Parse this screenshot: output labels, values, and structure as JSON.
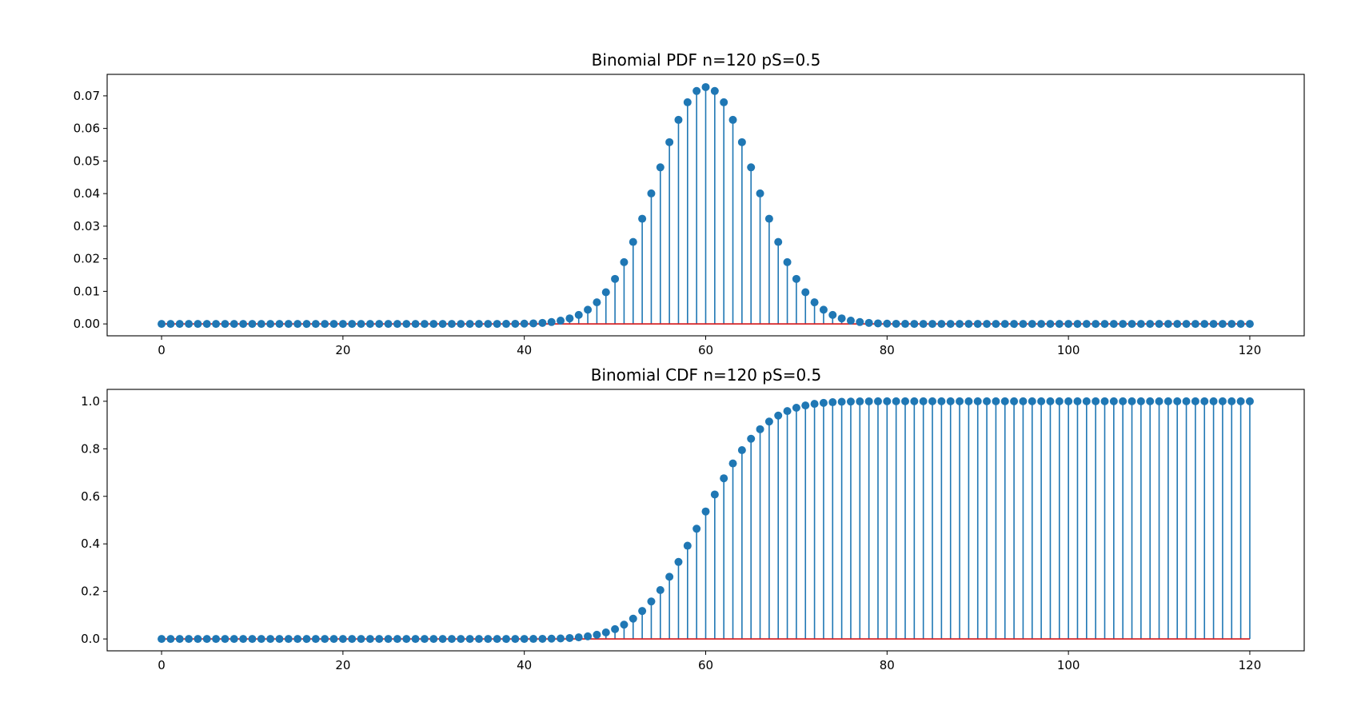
{
  "chart_data": [
    {
      "type": "stem",
      "title": "Binomial PDF n=120 pS=0.5",
      "n": 120,
      "pS": 0.5,
      "distribution": "pdf",
      "xlim": [
        -6,
        126
      ],
      "ylim": [
        -0.00365,
        0.0766
      ],
      "x_ticks": [
        0,
        20,
        40,
        60,
        80,
        100,
        120
      ],
      "x_tick_labels": [
        "0",
        "20",
        "40",
        "60",
        "80",
        "100",
        "120"
      ],
      "y_ticks": [
        0.0,
        0.01,
        0.02,
        0.03,
        0.04,
        0.05,
        0.06,
        0.07
      ],
      "y_tick_labels": [
        "0.00",
        "0.01",
        "0.02",
        "0.03",
        "0.04",
        "0.05",
        "0.06",
        "0.07"
      ],
      "x": [],
      "values": []
    },
    {
      "type": "stem",
      "title": "Binomial CDF n=120 pS=0.5",
      "n": 120,
      "pS": 0.5,
      "distribution": "cdf",
      "xlim": [
        -6,
        126
      ],
      "ylim": [
        -0.05,
        1.05
      ],
      "x_ticks": [
        0,
        20,
        40,
        60,
        80,
        100,
        120
      ],
      "x_tick_labels": [
        "0",
        "20",
        "40",
        "60",
        "80",
        "100",
        "120"
      ],
      "y_ticks": [
        0.0,
        0.2,
        0.4,
        0.6,
        0.8,
        1.0
      ],
      "y_tick_labels": [
        "0.0",
        "0.2",
        "0.4",
        "0.6",
        "0.8",
        "1.0"
      ],
      "x": [],
      "values": []
    }
  ],
  "colors": {
    "stem": "#1f77b4",
    "marker": "#1f77b4",
    "baseline": "#d62728",
    "frame": "#000000",
    "text": "#000000"
  }
}
